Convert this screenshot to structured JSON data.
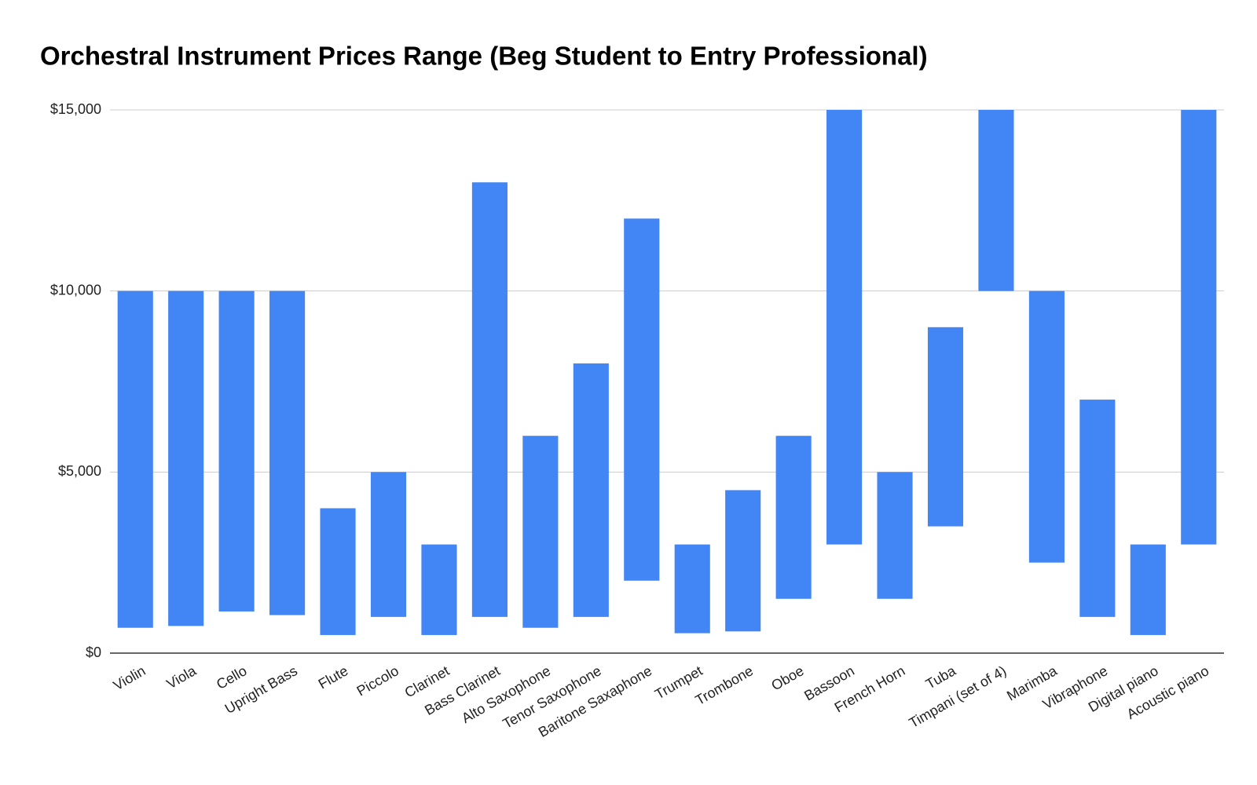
{
  "chart_data": {
    "type": "range-bar",
    "title": "Orchestral Instrument Prices Range (Beg Student to Entry Professional)",
    "categories": [
      "Violin",
      "Viola",
      "Cello",
      "Upright Bass",
      "Flute",
      "Piccolo",
      "Clarinet",
      "Bass Clarinet",
      "Alto Saxophone",
      "Tenor Saxophone",
      "Baritone Saxaphone",
      "Trumpet",
      "Trombone",
      "Oboe",
      "Bassoon",
      "French Horn",
      "Tuba",
      "Timpani (set of 4)",
      "Marimba",
      "Vibraphone",
      "Digital piano",
      "Acoustic piano"
    ],
    "low": [
      700,
      750,
      1150,
      1050,
      500,
      1000,
      500,
      1000,
      700,
      1000,
      2000,
      550,
      600,
      1500,
      3000,
      1500,
      3500,
      10000,
      2500,
      1000,
      500,
      3000
    ],
    "high": [
      10000,
      10000,
      10000,
      10000,
      4000,
      5000,
      3000,
      13000,
      6000,
      8000,
      12000,
      3000,
      4500,
      6000,
      15000,
      5000,
      9000,
      15000,
      10000,
      7000,
      3000,
      15000
    ],
    "color": "#4285f4",
    "ylim": [
      0,
      15000
    ],
    "yticks": [
      {
        "value": 0,
        "label": "$0"
      },
      {
        "value": 5000,
        "label": "$5,000"
      },
      {
        "value": 10000,
        "label": "$10,000"
      },
      {
        "value": 15000,
        "label": "$15,000"
      }
    ],
    "grid": true
  }
}
